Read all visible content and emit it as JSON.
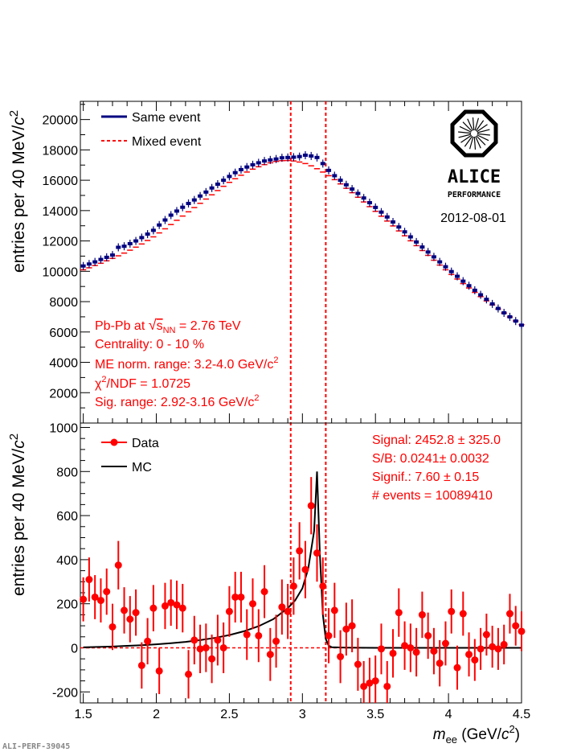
{
  "page_id": "ALI-PERF-39045",
  "colors": {
    "same_event": "#000080",
    "mixed_event": "#ff0000",
    "data": "#ff0000",
    "mc": "#000000",
    "annotation": "#ff0000",
    "axis": "#000000"
  },
  "logo": {
    "text": "ALICE",
    "subtext": "PERFORMANCE",
    "date": "2012-08-01"
  },
  "chart_data": [
    {
      "type": "scatter",
      "panel": "top",
      "ylabel": "entries per 40 MeV/c²",
      "xlim": [
        1.48,
        4.5
      ],
      "ylim": [
        0,
        21200
      ],
      "yticks": [
        2000,
        4000,
        6000,
        8000,
        10000,
        12000,
        14000,
        16000,
        18000,
        20000
      ],
      "legend": [
        "Same event",
        "Mixed event"
      ],
      "legend_placement": "top-left",
      "annotations": [
        "Pb-Pb at √s_NN = 2.76 TeV",
        "Centrality: 0 - 10 %",
        "ME norm. range: 3.2-4.0 GeV/c²",
        "χ²/NDF = 1.0725",
        "Sig. range: 2.92-3.16 GeV/c²"
      ],
      "signal_window": [
        2.92,
        3.16
      ],
      "x": [
        1.5,
        1.54,
        1.58,
        1.62,
        1.66,
        1.7,
        1.74,
        1.78,
        1.82,
        1.86,
        1.9,
        1.94,
        1.98,
        2.02,
        2.06,
        2.1,
        2.14,
        2.18,
        2.22,
        2.26,
        2.3,
        2.34,
        2.38,
        2.42,
        2.46,
        2.5,
        2.54,
        2.58,
        2.62,
        2.66,
        2.7,
        2.74,
        2.78,
        2.82,
        2.86,
        2.9,
        2.94,
        2.98,
        3.02,
        3.06,
        3.1,
        3.14,
        3.18,
        3.22,
        3.26,
        3.3,
        3.34,
        3.38,
        3.42,
        3.46,
        3.5,
        3.54,
        3.58,
        3.62,
        3.66,
        3.7,
        3.74,
        3.78,
        3.82,
        3.86,
        3.9,
        3.94,
        3.98,
        4.02,
        4.06,
        4.1,
        4.14,
        4.18,
        4.22,
        4.26,
        4.3,
        4.34,
        4.38,
        4.42,
        4.46,
        4.5
      ],
      "series": [
        {
          "name": "Same event",
          "values": [
            10350,
            10480,
            10620,
            10780,
            10920,
            11070,
            11580,
            11650,
            11820,
            12000,
            12220,
            12450,
            12700,
            13050,
            13380,
            13700,
            13970,
            14220,
            14470,
            14700,
            14960,
            15220,
            15490,
            15740,
            16000,
            16250,
            16500,
            16700,
            16870,
            17020,
            17150,
            17270,
            17340,
            17400,
            17480,
            17500,
            17520,
            17560,
            17650,
            17600,
            17500,
            17100,
            16650,
            16300,
            16000,
            15700,
            15420,
            15130,
            14830,
            14520,
            14210,
            13900,
            13580,
            13250,
            12920,
            12600,
            12270,
            11930,
            11600,
            11270,
            10950,
            10620,
            10300,
            9980,
            9670,
            9350,
            9050,
            8750,
            8450,
            8150,
            7850,
            7550,
            7260,
            7000,
            6720,
            6450
          ]
        },
        {
          "name": "Mixed event",
          "values": [
            10100,
            10230,
            10380,
            10530,
            10690,
            10850,
            11020,
            11200,
            11390,
            11590,
            11800,
            12030,
            12270,
            12530,
            12800,
            13080,
            13360,
            13640,
            13920,
            14200,
            14480,
            14760,
            15040,
            15320,
            15600,
            15860,
            16100,
            16330,
            16540,
            16730,
            16890,
            17030,
            17150,
            17240,
            17290,
            17300,
            17270,
            17200,
            17100,
            16950,
            16760,
            16540,
            16300,
            16040,
            15760,
            15470,
            15180,
            14880,
            14570,
            14260,
            13950,
            13630,
            13310,
            12990,
            12660,
            12340,
            12010,
            11690,
            11370,
            11050,
            10730,
            10410,
            10100,
            9790,
            9490,
            9190,
            8900,
            8610,
            8330,
            8050,
            7780,
            7510,
            7250,
            6990,
            6730,
            6480
          ]
        }
      ]
    },
    {
      "type": "scatter",
      "panel": "bottom",
      "ylabel": "entries per 40 MeV/c²",
      "xlabel": "m_ee (GeV/c²)",
      "xlim": [
        1.48,
        4.5
      ],
      "ylim": [
        -250,
        1020
      ],
      "yticks": [
        -200,
        0,
        200,
        400,
        600,
        800,
        1000
      ],
      "xticks": [
        1.5,
        2,
        2.5,
        3,
        3.5,
        4,
        4.5
      ],
      "legend": [
        "Data",
        "MC"
      ],
      "legend_placement": "top-left",
      "stats": [
        "Signal: 2452.8 ± 325.0",
        "S/B: 0.0241± 0.0032",
        "Signif.: 7.60 ± 0.15",
        "# events = 10089410"
      ],
      "signal_window": [
        2.92,
        3.16
      ],
      "data": {
        "name": "Data",
        "x": [
          1.5,
          1.54,
          1.58,
          1.62,
          1.66,
          1.7,
          1.74,
          1.78,
          1.82,
          1.86,
          1.9,
          1.94,
          1.98,
          2.02,
          2.06,
          2.1,
          2.14,
          2.18,
          2.22,
          2.26,
          2.3,
          2.34,
          2.38,
          2.42,
          2.46,
          2.5,
          2.54,
          2.58,
          2.62,
          2.66,
          2.7,
          2.74,
          2.78,
          2.82,
          2.86,
          2.9,
          2.94,
          2.98,
          3.02,
          3.06,
          3.1,
          3.14,
          3.18,
          3.22,
          3.26,
          3.3,
          3.34,
          3.38,
          3.42,
          3.46,
          3.5,
          3.54,
          3.58,
          3.62,
          3.66,
          3.7,
          3.74,
          3.78,
          3.82,
          3.86,
          3.9,
          3.94,
          3.98,
          4.02,
          4.06,
          4.1,
          4.14,
          4.18,
          4.22,
          4.26,
          4.3,
          4.34,
          4.38,
          4.42,
          4.46,
          4.5
        ],
        "values": [
          220,
          310,
          230,
          215,
          255,
          95,
          375,
          170,
          130,
          160,
          -80,
          30,
          180,
          -105,
          190,
          205,
          195,
          180,
          -120,
          35,
          -5,
          0,
          -50,
          35,
          0,
          165,
          230,
          230,
          60,
          200,
          55,
          255,
          -30,
          30,
          185,
          165,
          280,
          440,
          355,
          645,
          430,
          280,
          55,
          170,
          -40,
          85,
          100,
          -75,
          -175,
          -160,
          -150,
          -5,
          -175,
          -25,
          160,
          10,
          0,
          -20,
          150,
          55,
          -15,
          -70,
          20,
          165,
          -90,
          155,
          -30,
          -55,
          -5,
          60,
          5,
          -5,
          15,
          155,
          100,
          75
        ],
        "errors": [
          100,
          100,
          100,
          100,
          105,
          105,
          110,
          105,
          105,
          105,
          105,
          105,
          105,
          105,
          105,
          105,
          110,
          110,
          110,
          110,
          110,
          110,
          110,
          115,
          115,
          115,
          115,
          115,
          115,
          115,
          120,
          120,
          120,
          120,
          125,
          125,
          130,
          130,
          130,
          130,
          130,
          130,
          125,
          125,
          120,
          120,
          120,
          120,
          115,
          115,
          115,
          115,
          115,
          110,
          110,
          110,
          110,
          110,
          105,
          105,
          105,
          105,
          100,
          100,
          100,
          100,
          100,
          95,
          95,
          95,
          95,
          95,
          90,
          90,
          90,
          90
        ]
      },
      "mc": {
        "name": "MC",
        "x": [
          1.5,
          1.6,
          1.7,
          1.8,
          1.9,
          2.0,
          2.1,
          2.2,
          2.3,
          2.4,
          2.5,
          2.6,
          2.7,
          2.8,
          2.9,
          2.95,
          3.0,
          3.04,
          3.08,
          3.1,
          3.12,
          3.14,
          3.16,
          3.18,
          3.2,
          3.3,
          3.5,
          4.0,
          4.5
        ],
        "values": [
          2,
          4,
          6,
          9,
          12,
          16,
          21,
          27,
          35,
          45,
          58,
          75,
          98,
          130,
          180,
          215,
          270,
          360,
          530,
          800,
          420,
          150,
          40,
          10,
          3,
          1,
          0,
          0,
          0
        ]
      }
    }
  ]
}
